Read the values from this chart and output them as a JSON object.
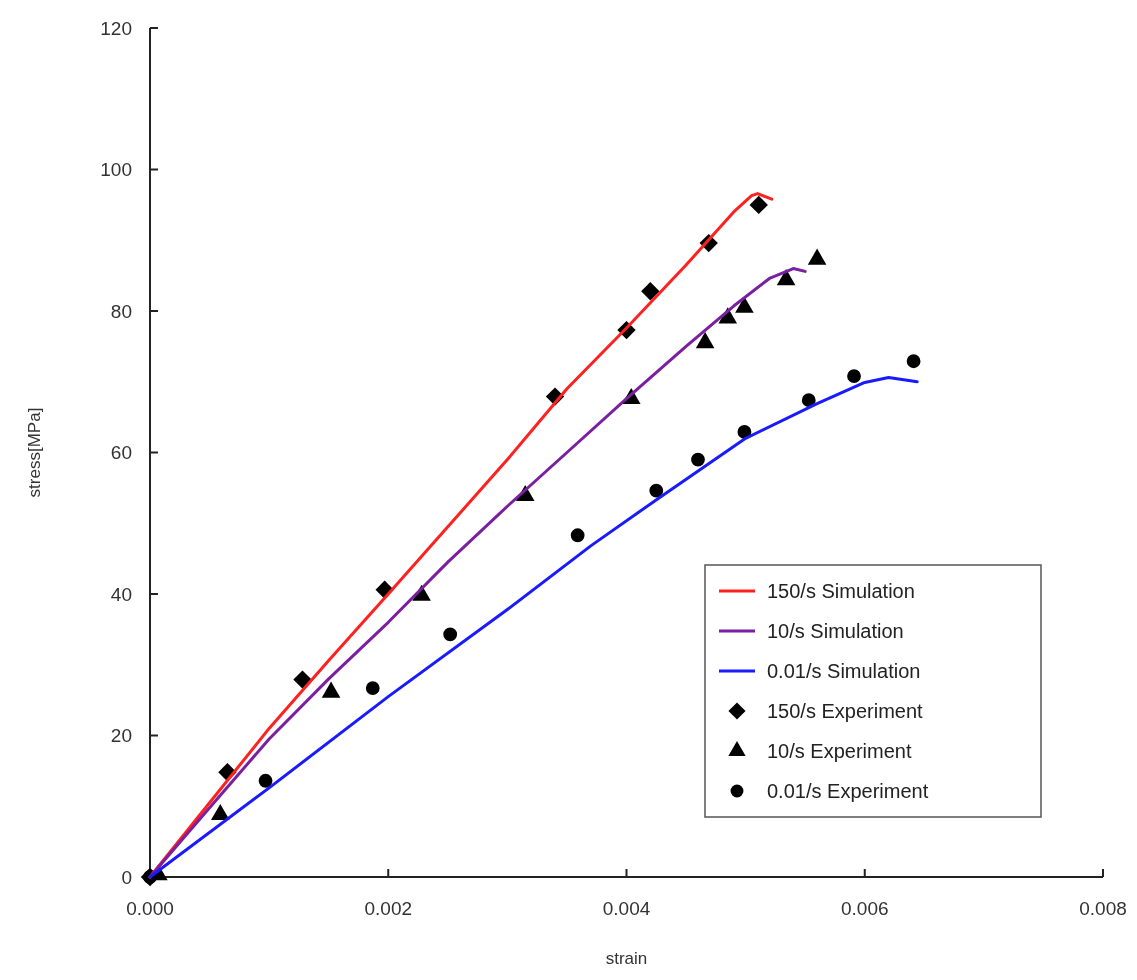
{
  "chart_data": {
    "type": "line",
    "xlabel": "strain",
    "ylabel": "stress[MPa]",
    "xlim": [
      0,
      0.008
    ],
    "ylim": [
      0,
      120
    ],
    "xticks": [
      {
        "value": 0,
        "label": "0.000"
      },
      {
        "value": 0.002,
        "label": "0.002"
      },
      {
        "value": 0.004,
        "label": "0.004"
      },
      {
        "value": 0.006,
        "label": "0.006"
      },
      {
        "value": 0.008,
        "label": "0.008"
      }
    ],
    "yticks": [
      0,
      20,
      40,
      60,
      80,
      100,
      120
    ],
    "grid": false,
    "legend": "bottom right",
    "line_style": "solid",
    "series": [
      {
        "name": "150/s Simulation",
        "color": "#ff2020",
        "marker": "none",
        "x": [
          0,
          0.0005,
          0.001,
          0.0015,
          0.002,
          0.0025,
          0.003,
          0.0035,
          0.004,
          0.0045,
          0.0049,
          0.00505,
          0.0051,
          0.00522
        ],
        "values": [
          0,
          10.5,
          21,
          30.6,
          40,
          49.5,
          59,
          69,
          77.6,
          86.5,
          94,
          96.3,
          96.6,
          95.8
        ]
      },
      {
        "name": "10/s Simulation",
        "color": "#7a1fa0",
        "marker": "none",
        "x": [
          0,
          0.0005,
          0.001,
          0.0015,
          0.002,
          0.0025,
          0.003,
          0.0035,
          0.004,
          0.0045,
          0.0049,
          0.0052,
          0.0054,
          0.0055
        ],
        "values": [
          0,
          9.8,
          19.5,
          28,
          36,
          44.5,
          52.4,
          60,
          67.6,
          75,
          80.7,
          84.6,
          86,
          85.6
        ]
      },
      {
        "name": "0.01/s Simulation",
        "color": "#1a1aff",
        "marker": "none",
        "x": [
          0,
          0.001,
          0.002,
          0.003,
          0.0037,
          0.0043,
          0.005,
          0.0056,
          0.006,
          0.0062,
          0.00644
        ],
        "values": [
          0,
          12.6,
          25.5,
          37.8,
          46.8,
          53.9,
          62,
          66.9,
          69.9,
          70.6,
          70
        ]
      },
      {
        "name": "150/s Experiment",
        "type": "scatter",
        "color": "#000000",
        "marker": "diamond",
        "x": [
          0,
          0.00065,
          0.00128,
          0.00197,
          0.0034,
          0.004,
          0.0042,
          0.00469,
          0.00511
        ],
        "values": [
          0,
          14.8,
          27.9,
          40.6,
          67.9,
          77.3,
          82.8,
          89.6,
          95.0
        ]
      },
      {
        "name": "10/s Experiment",
        "type": "scatter",
        "color": "#000000",
        "marker": "triangle",
        "x": [
          7e-05,
          0.00059,
          0.00152,
          0.00228,
          0.00315,
          0.00404,
          0.00466,
          0.00485,
          0.00499,
          0.00534,
          0.0056
        ],
        "values": [
          0.3,
          8.8,
          26.1,
          39.8,
          53.9,
          67.6,
          75.5,
          79.0,
          80.5,
          84.4,
          87.3
        ]
      },
      {
        "name": "0.01/s Experiment",
        "type": "scatter",
        "color": "#000000",
        "marker": "circle",
        "x": [
          0,
          0.00097,
          0.00187,
          0.00252,
          0.00359,
          0.00425,
          0.0046,
          0.00499,
          0.00553,
          0.00591,
          0.00641
        ],
        "values": [
          0,
          13.6,
          26.7,
          34.3,
          48.3,
          54.6,
          59.0,
          62.9,
          67.4,
          70.8,
          72.9
        ]
      }
    ]
  }
}
